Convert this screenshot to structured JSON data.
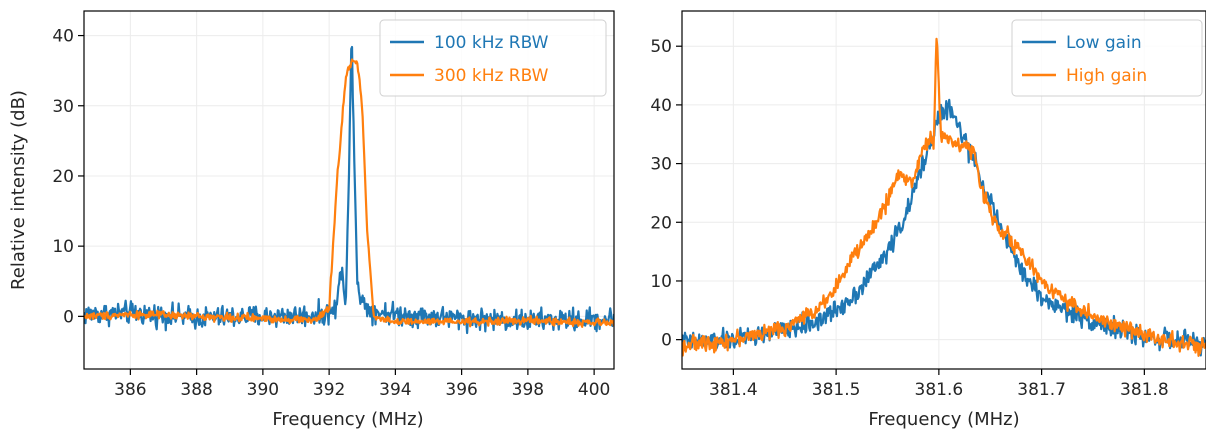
{
  "chart_data": [
    {
      "type": "line",
      "xlabel": "Frequency (MHz)",
      "ylabel": "Relative intensity (dB)",
      "xlim": [
        384.6,
        400.6
      ],
      "ylim": [
        -7.5,
        43.5
      ],
      "xticks": [
        386,
        388,
        390,
        392,
        394,
        396,
        398,
        400
      ],
      "yticks": [
        0,
        10,
        20,
        30,
        40
      ],
      "grid": true,
      "legend_position": "top-right",
      "series": [
        {
          "name": "100 kHz RBW",
          "color": "#1f77b4",
          "noise_amplitude": 1.3,
          "points": [
            [
              384.6,
              0.3
            ],
            [
              386.0,
              0.5
            ],
            [
              388.0,
              -0.2
            ],
            [
              390.0,
              0.0
            ],
            [
              391.8,
              0.2
            ],
            [
              392.2,
              1.0
            ],
            [
              392.4,
              7.5
            ],
            [
              392.5,
              1.5
            ],
            [
              392.6,
              20.0
            ],
            [
              392.68,
              41.2
            ],
            [
              392.75,
              25.0
            ],
            [
              392.85,
              5.0
            ],
            [
              393.0,
              2.0
            ],
            [
              393.3,
              0.8
            ],
            [
              394.0,
              0.3
            ],
            [
              396.0,
              -0.3
            ],
            [
              398.0,
              -0.6
            ],
            [
              400.6,
              -0.4
            ]
          ]
        },
        {
          "name": "300 kHz RBW",
          "color": "#ff7f0e",
          "noise_amplitude": 0.45,
          "points": [
            [
              384.6,
              0.0
            ],
            [
              386.0,
              0.3
            ],
            [
              388.0,
              0.0
            ],
            [
              390.0,
              -0.3
            ],
            [
              391.6,
              -0.5
            ],
            [
              392.0,
              1.0
            ],
            [
              392.25,
              20.0
            ],
            [
              392.5,
              34.0
            ],
            [
              392.7,
              36.5
            ],
            [
              392.85,
              36.0
            ],
            [
              393.0,
              30.0
            ],
            [
              393.15,
              12.0
            ],
            [
              393.35,
              0.0
            ],
            [
              394.0,
              -0.8
            ],
            [
              396.0,
              -0.8
            ],
            [
              398.0,
              -0.6
            ],
            [
              400.6,
              -1.0
            ]
          ]
        }
      ]
    },
    {
      "type": "line",
      "xlabel": "Frequency (MHz)",
      "ylabel": "",
      "xlim": [
        381.35,
        381.86
      ],
      "ylim": [
        -5,
        56
      ],
      "xticks": [
        381.4,
        381.5,
        381.6,
        381.7,
        381.8
      ],
      "xtick_labels": [
        "381.4",
        "381.5",
        "381.6",
        "381.7",
        "381.8"
      ],
      "yticks": [
        0,
        10,
        20,
        30,
        40,
        50
      ],
      "grid": true,
      "legend_position": "top-right",
      "series": [
        {
          "name": "Low gain",
          "color": "#1f77b4",
          "noise_amplitude": 1.4,
          "points": [
            [
              381.35,
              -0.5
            ],
            [
              381.4,
              0.0
            ],
            [
              381.45,
              1.5
            ],
            [
              381.48,
              3.0
            ],
            [
              381.5,
              5.0
            ],
            [
              381.52,
              8.0
            ],
            [
              381.55,
              15.0
            ],
            [
              381.57,
              22.0
            ],
            [
              381.59,
              33.0
            ],
            [
              381.6,
              38.0
            ],
            [
              381.61,
              39.5
            ],
            [
              381.62,
              36.0
            ],
            [
              381.64,
              28.0
            ],
            [
              381.66,
              19.0
            ],
            [
              381.68,
              12.0
            ],
            [
              381.7,
              7.0
            ],
            [
              381.73,
              4.5
            ],
            [
              381.76,
              2.5
            ],
            [
              381.8,
              0.5
            ],
            [
              381.86,
              -0.8
            ]
          ]
        },
        {
          "name": "High gain",
          "color": "#ff7f0e",
          "noise_amplitude": 1.1,
          "points": [
            [
              381.35,
              -1.0
            ],
            [
              381.4,
              0.0
            ],
            [
              381.45,
              2.0
            ],
            [
              381.48,
              5.0
            ],
            [
              381.5,
              9.0
            ],
            [
              381.52,
              15.0
            ],
            [
              381.54,
              20.0
            ],
            [
              381.56,
              28.0
            ],
            [
              381.575,
              27.0
            ],
            [
              381.585,
              33.0
            ],
            [
              381.595,
              34.0
            ],
            [
              381.598,
              53.0
            ],
            [
              381.602,
              34.5
            ],
            [
              381.61,
              34.0
            ],
            [
              381.625,
              33.0
            ],
            [
              381.635,
              32.0
            ],
            [
              381.64,
              26.0
            ],
            [
              381.655,
              20.0
            ],
            [
              381.675,
              16.0
            ],
            [
              381.7,
              10.0
            ],
            [
              381.73,
              6.0
            ],
            [
              381.76,
              3.0
            ],
            [
              381.8,
              1.0
            ],
            [
              381.86,
              -1.5
            ]
          ]
        }
      ]
    }
  ]
}
